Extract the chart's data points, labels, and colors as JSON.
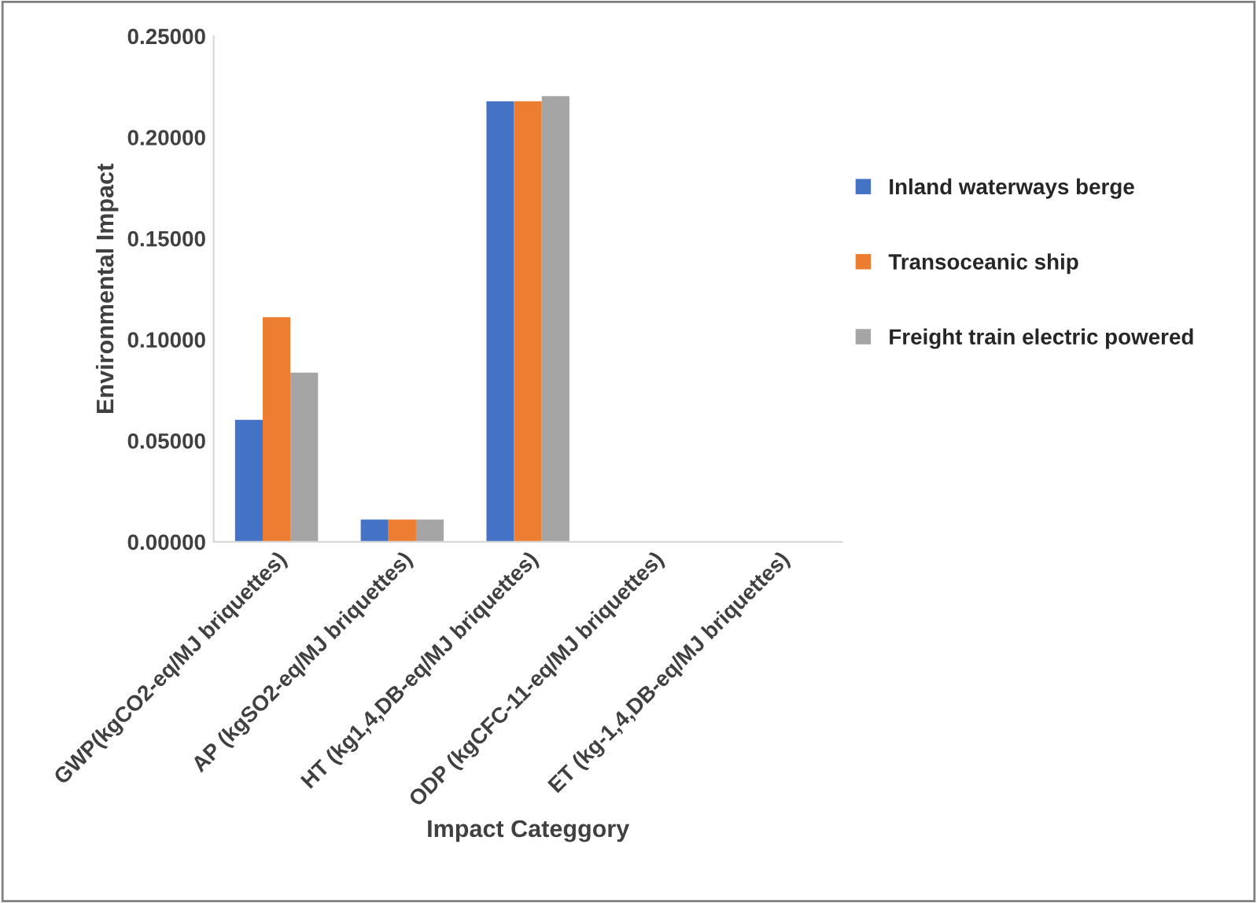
{
  "chart_data": {
    "type": "bar",
    "xlabel": "Impact Categgory",
    "ylabel": "Environmental Impact",
    "categories": [
      "GWP(kgCO2-eq/MJ briquettes)",
      "AP (kgSO2-eq/MJ briquettes)",
      "HT (kg1,4,DB-eq/MJ briquettes)",
      "ODP (kgCFC-11-eq/MJ briquettes)",
      "ET (kg-1,4,DB-eq/MJ briquettes)"
    ],
    "series": [
      {
        "name": "Inland waterways berge",
        "color": "#4472c4",
        "values": [
          0.0603,
          0.011,
          0.2178,
          null,
          null
        ]
      },
      {
        "name": "Transoceanic ship",
        "color": "#ed7d31",
        "values": [
          0.111,
          0.011,
          0.2178,
          null,
          null
        ]
      },
      {
        "name": "Freight train electric powered",
        "color": "#a5a5a5",
        "values": [
          0.0836,
          0.011,
          0.2203,
          null,
          null
        ]
      }
    ],
    "ylim": [
      0,
      0.25
    ],
    "yticks": [
      {
        "value": 0,
        "label": "0.00000"
      },
      {
        "value": 0.05,
        "label": "0.05000"
      },
      {
        "value": 0.1,
        "label": "0.10000"
      },
      {
        "value": 0.15,
        "label": "0.15000"
      },
      {
        "value": 0.2,
        "label": "0.20000"
      },
      {
        "value": 0.25,
        "label": "0.25000"
      }
    ],
    "legend": "right",
    "grid": false
  }
}
